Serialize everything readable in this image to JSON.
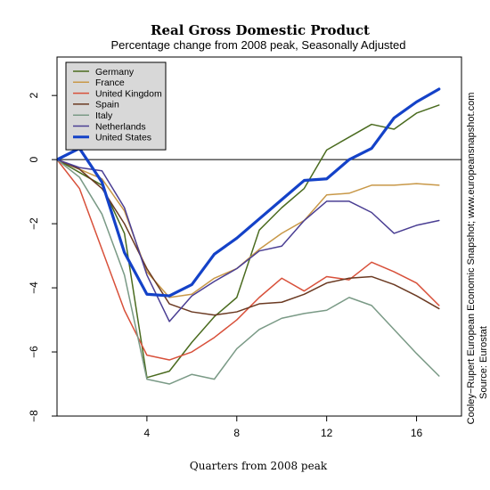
{
  "chart_data": {
    "type": "line",
    "title": "Real Gross Domestic Product",
    "subtitle": "Percentage change from 2008 peak, Seasonally Adjusted",
    "xlabel": "Quarters from 2008 peak",
    "ylabel": "",
    "xlim": [
      0,
      18
    ],
    "ylim": [
      -8,
      3.2
    ],
    "xticks": [
      4,
      8,
      12,
      16
    ],
    "yticks": [
      -8,
      -6,
      -4,
      -2,
      0,
      2
    ],
    "ytick_labels": [
      "−8",
      "−6",
      "−4",
      "−2",
      "0",
      "2"
    ],
    "zero_line": true,
    "grid": false,
    "legend_position": "top-left",
    "source_lines": [
      "Cooley−Rupert European Economic Snapshot; www.europeansnapshot.com",
      "Source: Eurostat"
    ],
    "x": [
      0,
      1,
      2,
      3,
      4,
      5,
      6,
      7,
      8,
      9,
      10,
      11,
      12,
      13,
      14,
      15,
      16,
      17,
      18
    ],
    "series": [
      {
        "name": "Germany",
        "color": "#4a6b1f",
        "width": 1.5,
        "values": [
          0,
          -0.4,
          -0.8,
          -2.3,
          -6.8,
          -6.6,
          -5.7,
          -4.9,
          -4.3,
          -2.2,
          -1.5,
          -0.9,
          0.3,
          0.7,
          1.1,
          0.95,
          1.45,
          1.7,
          null
        ]
      },
      {
        "name": "France",
        "color": "#c89848",
        "width": 1.5,
        "values": [
          0,
          -0.3,
          -0.6,
          -1.6,
          -3.5,
          -4.3,
          -4.2,
          -3.7,
          -3.4,
          -2.8,
          -2.3,
          -1.9,
          -1.1,
          -1.05,
          -0.8,
          -0.8,
          -0.75,
          -0.8,
          null
        ]
      },
      {
        "name": "United Kingdom",
        "color": "#d8503a",
        "width": 1.5,
        "values": [
          0,
          -0.9,
          -2.8,
          -4.7,
          -6.1,
          -6.25,
          -6.0,
          -5.55,
          -5.0,
          -4.3,
          -3.7,
          -4.1,
          -3.65,
          -3.75,
          -3.2,
          -3.5,
          -3.85,
          -4.55,
          null
        ]
      },
      {
        "name": "Spain",
        "color": "#6b3a22",
        "width": 1.5,
        "values": [
          0,
          -0.3,
          -0.9,
          -2.0,
          -3.4,
          -4.5,
          -4.75,
          -4.85,
          -4.75,
          -4.5,
          -4.45,
          -4.2,
          -3.85,
          -3.7,
          -3.65,
          -3.9,
          -4.25,
          -4.65,
          null
        ]
      },
      {
        "name": "Italy",
        "color": "#7a9a86",
        "width": 1.5,
        "values": [
          0,
          -0.55,
          -1.7,
          -3.6,
          -6.85,
          -7.0,
          -6.7,
          -6.85,
          -5.9,
          -5.3,
          -4.95,
          -4.8,
          -4.7,
          -4.3,
          -4.55,
          -5.3,
          -6.05,
          -6.75,
          null
        ]
      },
      {
        "name": "Netherlands",
        "color": "#4a3e93",
        "width": 1.5,
        "values": [
          0,
          -0.25,
          -0.35,
          -1.5,
          -3.6,
          -5.05,
          -4.25,
          -3.8,
          -3.4,
          -2.85,
          -2.7,
          -1.9,
          -1.3,
          -1.3,
          -1.65,
          -2.3,
          -2.05,
          -1.9,
          null
        ]
      },
      {
        "name": "United States",
        "color": "#1442c8",
        "width": 3.2,
        "values": [
          0,
          0.35,
          -0.7,
          -2.9,
          -4.2,
          -4.25,
          -3.9,
          -2.95,
          -2.45,
          -1.85,
          -1.25,
          -0.65,
          -0.6,
          0,
          0.35,
          1.3,
          1.8,
          2.2,
          null
        ]
      }
    ]
  }
}
